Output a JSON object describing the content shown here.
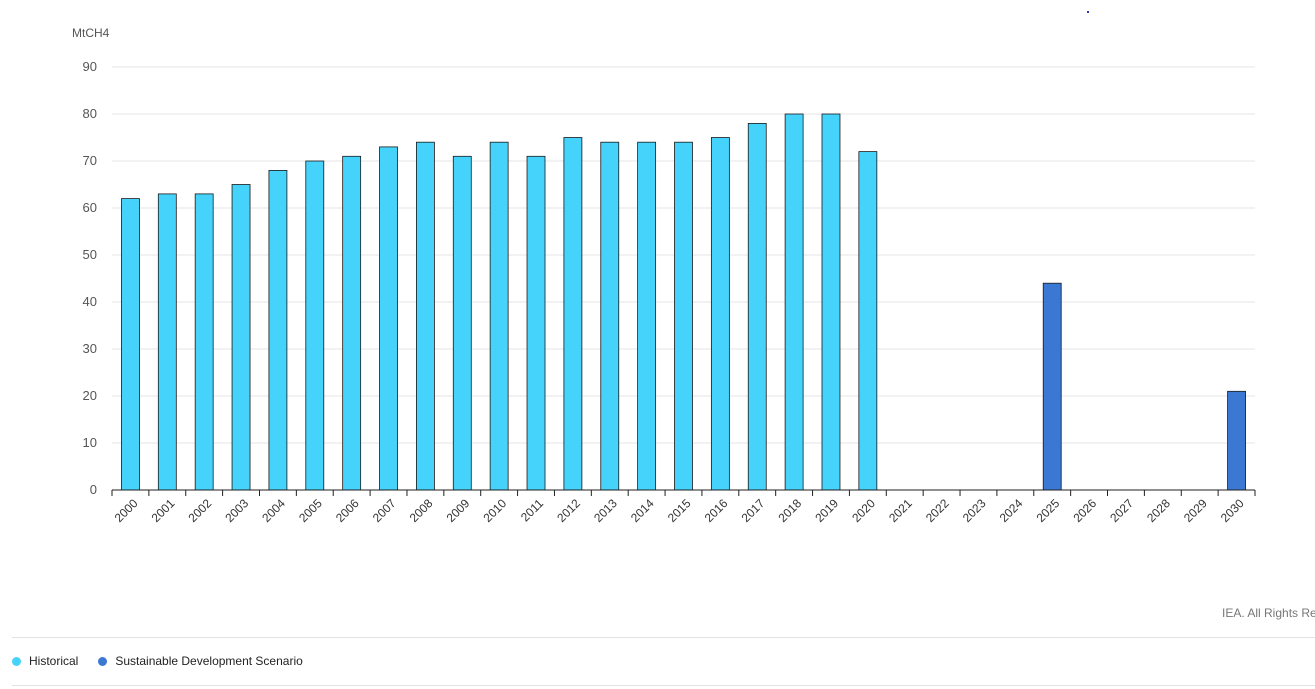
{
  "chart_data": {
    "type": "bar",
    "ylabel": "MtCH4",
    "ylim": [
      0,
      90
    ],
    "yticks": [
      0,
      10,
      20,
      30,
      40,
      50,
      60,
      70,
      80,
      90
    ],
    "grid": true,
    "categories": [
      "2000",
      "2001",
      "2002",
      "2003",
      "2004",
      "2005",
      "2006",
      "2007",
      "2008",
      "2009",
      "2010",
      "2011",
      "2012",
      "2013",
      "2014",
      "2015",
      "2016",
      "2017",
      "2018",
      "2019",
      "2020",
      "2021",
      "2022",
      "2023",
      "2024",
      "2025",
      "2026",
      "2027",
      "2028",
      "2029",
      "2030"
    ],
    "series": [
      {
        "name": "Historical",
        "color": "#45d3fc",
        "values": [
          62,
          63,
          63,
          65,
          68,
          70,
          71,
          73,
          74,
          71,
          74,
          71,
          75,
          74,
          74,
          74,
          75,
          78,
          80,
          80,
          72,
          null,
          null,
          null,
          null,
          null,
          null,
          null,
          null,
          null,
          null
        ]
      },
      {
        "name": "Sustainable Development Scenario",
        "color": "#3b78d4",
        "values": [
          null,
          null,
          null,
          null,
          null,
          null,
          null,
          null,
          null,
          null,
          null,
          null,
          null,
          null,
          null,
          null,
          null,
          null,
          null,
          null,
          null,
          null,
          null,
          null,
          null,
          44,
          null,
          null,
          null,
          null,
          21
        ]
      }
    ],
    "legend_position": "bottom-left"
  },
  "credit": "IEA. All Rights Re",
  "legend": [
    {
      "label": "Historical",
      "color": "#45d3fc"
    },
    {
      "label": "Sustainable Development Scenario",
      "color": "#3b78d4"
    }
  ]
}
